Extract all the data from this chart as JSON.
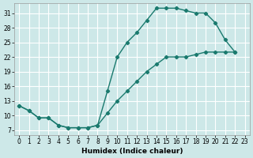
{
  "xlabel": "Humidex (Indice chaleur)",
  "bg_color": "#cde8e8",
  "line_color": "#1a7a6e",
  "grid_color": "#ffffff",
  "xlim": [
    -0.5,
    23.5
  ],
  "ylim": [
    6.0,
    33.0
  ],
  "xticks": [
    0,
    1,
    2,
    3,
    4,
    5,
    6,
    7,
    8,
    9,
    10,
    11,
    12,
    13,
    14,
    15,
    16,
    17,
    18,
    19,
    20,
    21,
    22,
    23
  ],
  "yticks": [
    7,
    10,
    13,
    16,
    19,
    22,
    25,
    28,
    31
  ],
  "upper_curve_x": [
    0,
    1,
    2,
    3,
    4,
    5,
    6,
    7,
    8,
    9,
    10,
    11,
    12,
    13,
    14,
    15,
    16,
    17,
    18,
    19,
    20,
    21,
    22
  ],
  "upper_curve_y": [
    12,
    11,
    9.5,
    9.5,
    8.0,
    7.5,
    7.5,
    7.5,
    8.0,
    15.0,
    22.0,
    25.0,
    27.0,
    29.5,
    32.0,
    32.0,
    32.0,
    31.5,
    31.0,
    31.0,
    29.0,
    25.5,
    23.0
  ],
  "lower_curve_x": [
    0,
    1,
    2,
    3,
    4,
    5,
    6,
    7,
    8,
    9,
    10,
    11,
    12,
    13,
    14,
    15,
    16,
    17,
    18,
    19,
    20,
    21,
    22
  ],
  "lower_curve_y": [
    12,
    11,
    9.5,
    9.5,
    8.0,
    7.5,
    7.5,
    7.5,
    8.0,
    10.5,
    13.0,
    15.0,
    17.0,
    19.0,
    20.5,
    22.0,
    22.0,
    22.0,
    22.5,
    23.0,
    23.0,
    23.0,
    23.0
  ]
}
